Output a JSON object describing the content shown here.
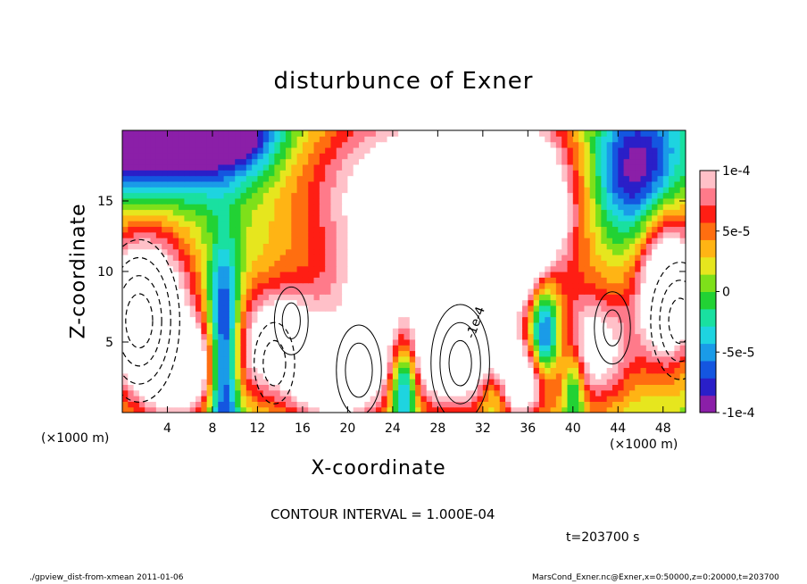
{
  "chart_data": {
    "type": "heatmap",
    "title": "disturbunce of Exner",
    "xlabel": "X-coordinate",
    "ylabel": "Z-coordinate",
    "x_unit_label": "(×1000 m)",
    "xlim": [
      0,
      50
    ],
    "ylim": [
      0,
      20
    ],
    "x_ticks": [
      4,
      8,
      12,
      16,
      20,
      24,
      28,
      32,
      36,
      40,
      44,
      48
    ],
    "y_ticks": [
      5,
      10,
      15
    ],
    "colorbar": {
      "min": -0.0001,
      "max": 0.0001,
      "tick_values": [
        0.0001,
        5e-05,
        0,
        -5e-05,
        -0.0001
      ],
      "tick_labels": [
        "1e-4",
        "5e-5",
        "0",
        "-5e-5",
        "-1e-4"
      ],
      "colors": [
        "#8b1fa8",
        "#2a1fc8",
        "#1456e0",
        "#1a9be8",
        "#1ed4e0",
        "#19e0a0",
        "#22d234",
        "#7ee01a",
        "#e6e61e",
        "#ffb414",
        "#ff6e10",
        "#ff1e14",
        "#ff7a8a",
        "#ffc0c8"
      ]
    },
    "contour_interval_text": "CONTOUR INTERVAL = 1.000E-04",
    "time_text": "t=203700 s",
    "annotation": "-1e-4"
  },
  "footer": {
    "left": "./gpview_dist-from-xmean   2011-01-06",
    "right": "MarsCond_Exner.nc@Exner,x=0:50000,z=0:20000,t=203700"
  }
}
